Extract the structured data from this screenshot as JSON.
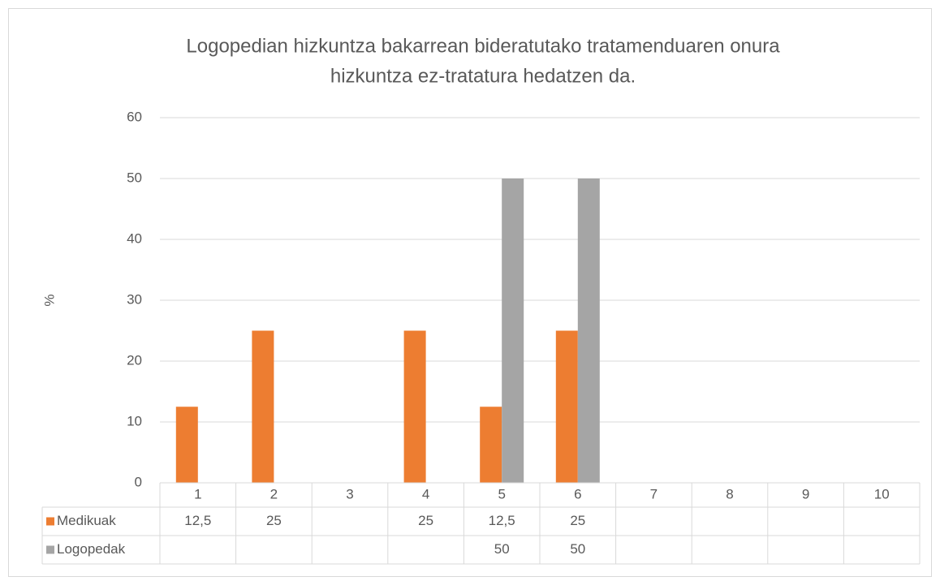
{
  "chart_data": {
    "type": "bar",
    "title": [
      "Logopedian hizkuntza bakarrean bideratutako tratamenduaren onura",
      "hizkuntza ez-tratatura hedatzen da."
    ],
    "y_label": "%",
    "categories": [
      "1",
      "2",
      "3",
      "4",
      "5",
      "6",
      "7",
      "8",
      "9",
      "10"
    ],
    "series": [
      {
        "name": "Medikuak",
        "color": "#ed7d31",
        "values": [
          12.5,
          25,
          null,
          25,
          12.5,
          25,
          null,
          null,
          null,
          null
        ],
        "value_labels": [
          "12,5",
          "25",
          null,
          "25",
          "12,5",
          "25",
          null,
          null,
          null,
          null
        ]
      },
      {
        "name": "Logopedak",
        "color": "#a5a5a5",
        "values": [
          null,
          null,
          null,
          null,
          50,
          50,
          null,
          null,
          null,
          null
        ]
      }
    ],
    "ylim": [
      0,
      60
    ],
    "yticks": [
      0,
      10,
      20,
      30,
      40,
      50,
      60
    ],
    "grid": true,
    "data_table": true
  }
}
